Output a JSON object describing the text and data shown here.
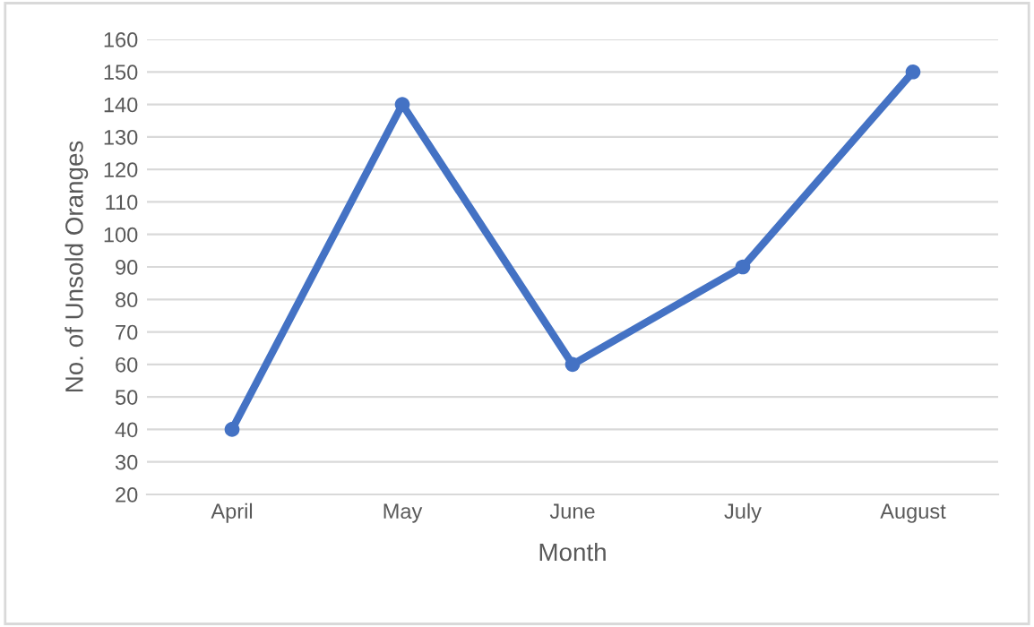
{
  "chart_data": {
    "type": "line",
    "xlabel": "Month",
    "ylabel": "No. of Unsold Oranges",
    "categories": [
      "April",
      "May",
      "June",
      "July",
      "August"
    ],
    "series": [
      {
        "color": "#4472c4",
        "values": [
          40,
          140,
          60,
          90,
          150
        ]
      }
    ],
    "ylim": [
      20,
      160
    ],
    "yticks": [
      20,
      30,
      40,
      50,
      60,
      70,
      80,
      90,
      100,
      110,
      120,
      130,
      140,
      150,
      160
    ],
    "grid": "y",
    "marker": "circle",
    "line_style": "solid",
    "legend": false
  }
}
